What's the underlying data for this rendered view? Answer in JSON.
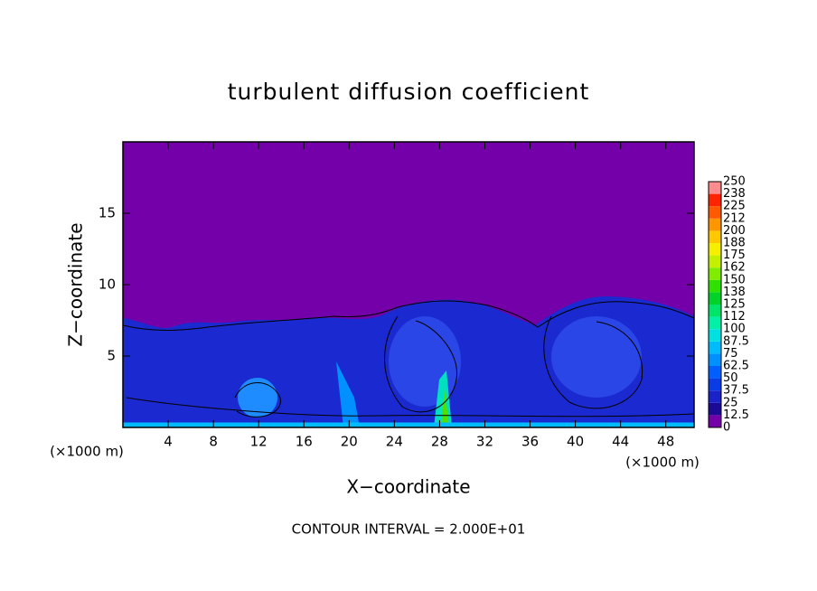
{
  "chart_data": {
    "type": "contour",
    "title": "turbulent diffusion coefficient",
    "x_label": "X−coordinate",
    "y_label": "Z−coordinate",
    "x_unit_left": "(×1000 m)",
    "x_unit_right": "(×1000 m)",
    "footnote": "CONTOUR INTERVAL = 2.000E+01",
    "xlim": [
      0,
      50.5
    ],
    "ylim": [
      0,
      20
    ],
    "xticks": [
      4,
      8,
      12,
      16,
      20,
      24,
      28,
      32,
      36,
      40,
      44,
      48
    ],
    "yticks": [
      5,
      10,
      15
    ],
    "colorbar": {
      "levels": [
        0,
        12.5,
        25,
        37.5,
        50,
        62.5,
        75,
        87.5,
        100,
        112,
        125,
        138,
        150,
        162,
        175,
        188,
        200,
        212,
        225,
        238,
        250
      ],
      "colors": [
        "#7300a8",
        "#1c0a96",
        "#1a22c8",
        "#0a3ce6",
        "#0060ff",
        "#0090ff",
        "#00bcff",
        "#00e0e0",
        "#00f0a8",
        "#00e46a",
        "#00d22a",
        "#30e000",
        "#80ec00",
        "#c4f000",
        "#f4f000",
        "#ffc800",
        "#ff9600",
        "#ff5a00",
        "#ff2400",
        "#ff8c8c"
      ]
    }
  }
}
